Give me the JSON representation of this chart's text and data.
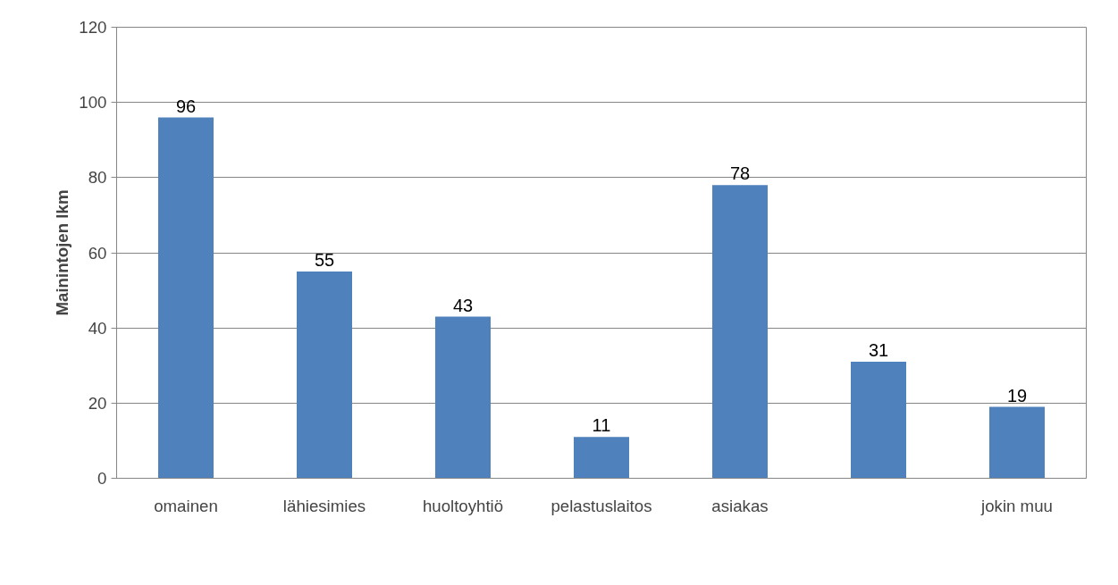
{
  "chart_data": {
    "type": "bar",
    "ylabel": "Mainintojen lkm",
    "categories": [
      "omainen",
      "lähiesimies",
      "huoltoyhtiö",
      "pelastuslaitos",
      "asiakas",
      null,
      "jokin muu"
    ],
    "values": [
      96,
      55,
      43,
      11,
      78,
      31,
      19
    ],
    "color": "#4f81bd",
    "ylim": [
      0,
      120
    ],
    "yticks": [
      0,
      20,
      40,
      60,
      80,
      100,
      120
    ],
    "grid": "y",
    "data_labels": true
  }
}
